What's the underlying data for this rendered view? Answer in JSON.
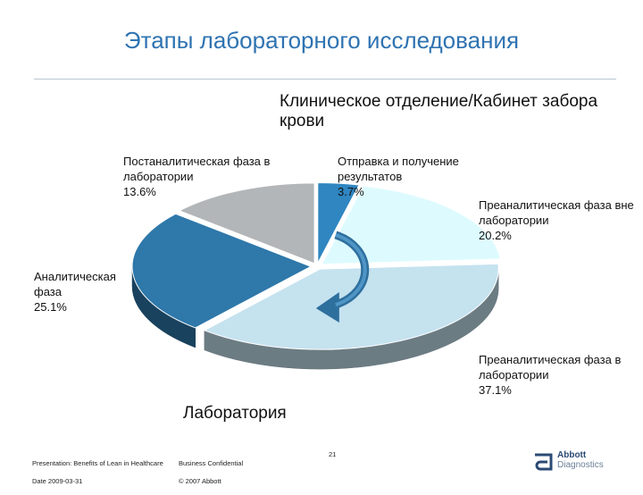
{
  "title": "Этапы лабораторного исследования",
  "subtitle": "Клиническое отделение/Кабинет забора крови",
  "bottom_label": "Лаборатория",
  "chart_data": {
    "type": "pie",
    "title": "Этапы лабораторного исследования",
    "slices": [
      {
        "label": "Отправка и получение результатов",
        "value": 3.7,
        "display": "3.7%",
        "color": "#2f86c1"
      },
      {
        "label": "Преаналитическая фаза вне лаборатории",
        "value": 20.2,
        "display": "20.2%",
        "color": "#ddfbff"
      },
      {
        "label": "Преаналитическая фаза в лаборатории",
        "value": 37.1,
        "display": "37.1%",
        "color": "#c5e2ef"
      },
      {
        "label": "Аналитическая фаза",
        "value": 25.1,
        "display": "25.1%",
        "color": "#2e78aa"
      },
      {
        "label": "Постаналитическая фаза в лаборатории",
        "value": 13.6,
        "display": "13.6%",
        "color": "#b3b6b8"
      }
    ]
  },
  "footer": {
    "presentation": "Presentation: Benefits of Lean in Healthcare",
    "date": "Date 2009-03-31",
    "confidential": "Business Confidential",
    "copyright": "© 2007 Abbott",
    "page_number": "21"
  },
  "logo": {
    "name": "Abbott",
    "division": "Diagnostics",
    "color": "#2b4a75"
  }
}
